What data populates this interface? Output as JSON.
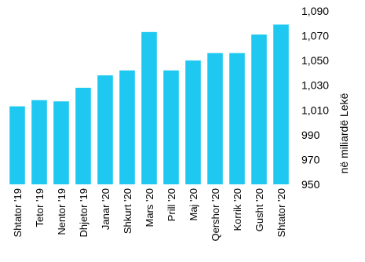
{
  "chart_data": {
    "type": "bar",
    "categories": [
      "Shtator '19",
      "Tetor '19",
      "Nentor '19",
      "Dhjetor '19",
      "Janar '20",
      "Shkurt '20",
      "Mars '20",
      "Prill '20",
      "Maj '20",
      "Qershor '20",
      "Korrik '20",
      "Gusht '20",
      "Shtator '20"
    ],
    "values": [
      1013,
      1018,
      1017,
      1028,
      1038,
      1042,
      1073,
      1042,
      1050,
      1056,
      1056,
      1071,
      1079
    ],
    "ylabel": "në miliardë  Lekë",
    "ylim": [
      950,
      1090
    ],
    "yticks": [
      950,
      970,
      990,
      1010,
      1030,
      1050,
      1070,
      1090
    ],
    "ytick_labels": [
      "950",
      "970",
      "990",
      "1,010",
      "1,030",
      "1,050",
      "1,070",
      "1,090"
    ],
    "bar_color": "#1ec8f0",
    "grid": false,
    "y_axis_side": "right"
  }
}
